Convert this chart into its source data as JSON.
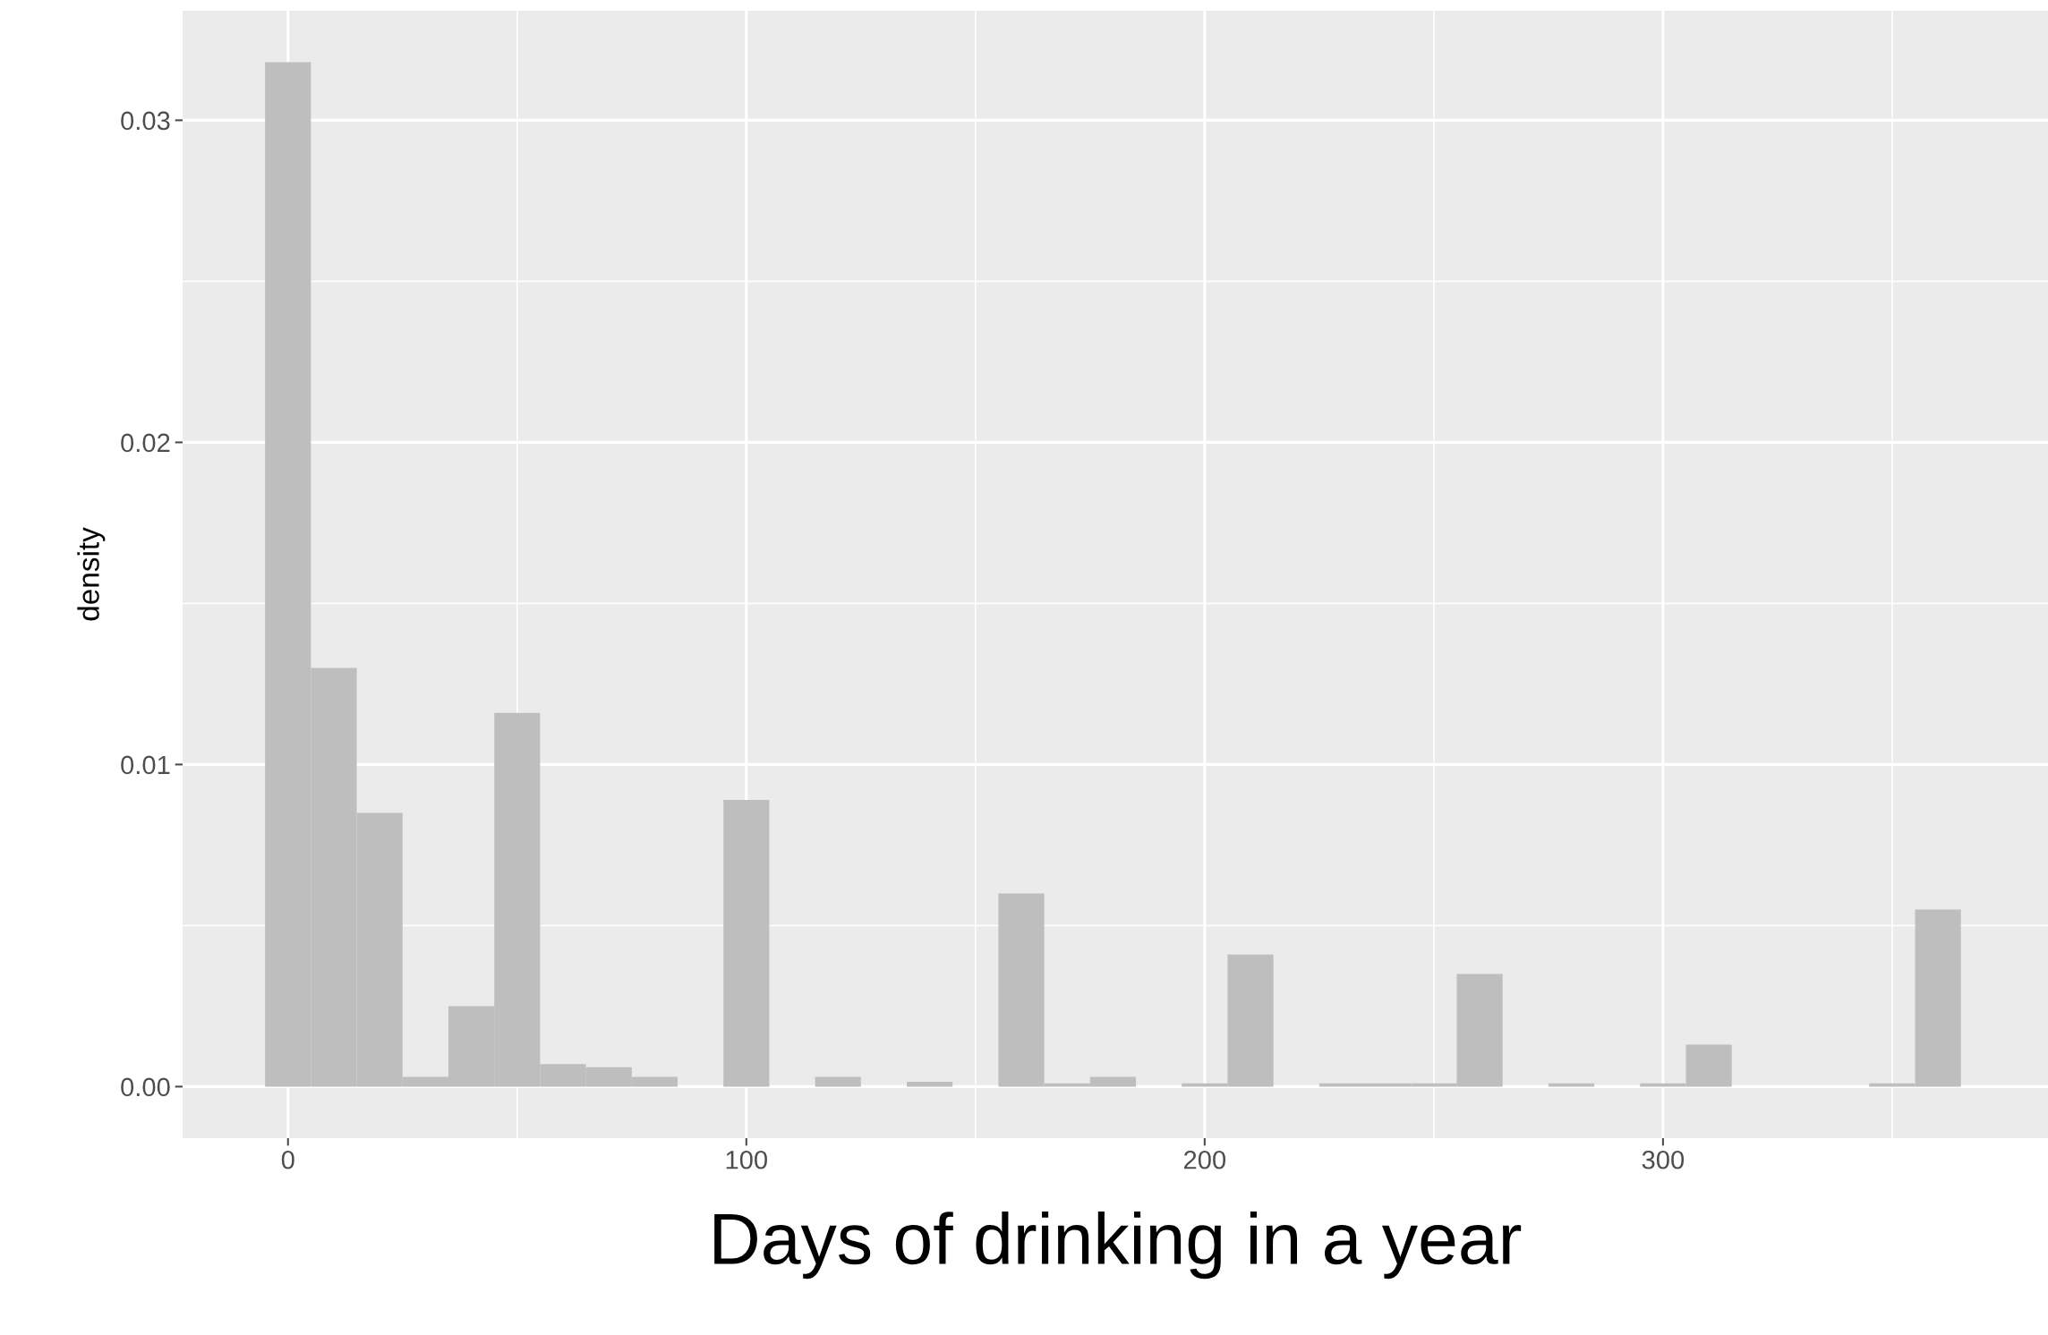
{
  "chart_data": {
    "type": "histogram",
    "xlabel": "Days of drinking in a year",
    "ylabel": "density",
    "bins": [
      -5,
      5,
      15,
      25,
      35,
      45,
      55,
      65,
      75,
      85,
      95,
      105,
      115,
      125,
      135,
      145,
      155,
      165,
      175,
      185,
      195,
      205,
      215,
      225,
      235,
      245,
      255,
      265,
      275,
      285,
      295,
      305,
      315,
      325,
      335,
      345,
      355,
      365
    ],
    "values": [
      0.0318,
      0.013,
      0.0085,
      0.0003,
      0.0025,
      0.0116,
      0.0007,
      0.0006,
      0.0003,
      0,
      0.0089,
      0,
      0.0003,
      0,
      0.00015,
      0,
      0.006,
      0.0001,
      0.0003,
      0,
      0.0001,
      0.0041,
      0,
      0.0001,
      0.0001,
      0.0001,
      0.0035,
      0,
      0.0001,
      0,
      0.0001,
      0.0013,
      0,
      0,
      0,
      0.0001,
      0.0055
    ],
    "color": "#bebebe",
    "xlim": [
      -23,
      384
    ],
    "ylim": [
      -0.0016,
      0.0334
    ],
    "xticks": [
      0,
      100,
      200,
      300
    ],
    "yticks": [
      {
        "value": 0,
        "label": "0.00"
      },
      {
        "value": 0.01,
        "label": "0.01"
      },
      {
        "value": 0.02,
        "label": "0.02"
      },
      {
        "value": 0.03,
        "label": "0.03"
      }
    ],
    "grid": true
  }
}
